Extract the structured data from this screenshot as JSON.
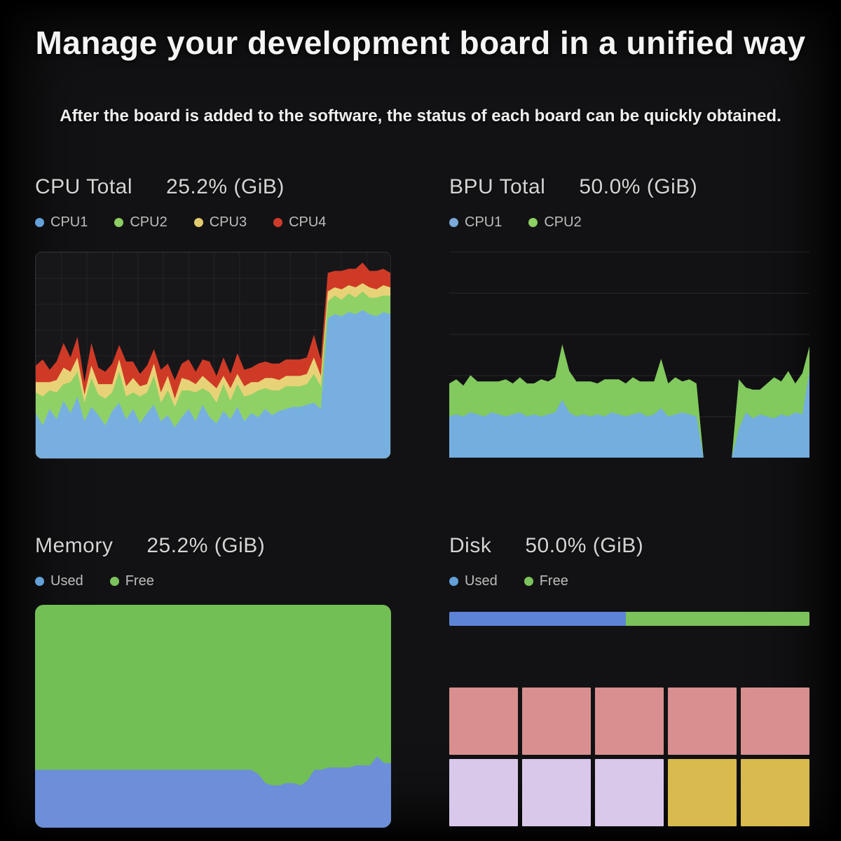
{
  "page": {
    "title": "Manage your development board in a unified way",
    "subtitle": "After the board is added to the software, the status of each board can be quickly obtained."
  },
  "panels": {
    "cpu": {
      "title": "CPU Total",
      "value": "25.2% (GiB)",
      "legend": [
        {
          "label": "CPU1",
          "color": "#63a0d8"
        },
        {
          "label": "CPU2",
          "color": "#8ccf62"
        },
        {
          "label": "CPU3",
          "color": "#e2cb6c"
        },
        {
          "label": "CPU4",
          "color": "#d03a28"
        }
      ]
    },
    "bpu": {
      "title": "BPU Total",
      "value": "50.0% (GiB)",
      "legend": [
        {
          "label": "CPU1",
          "color": "#7aa8d8"
        },
        {
          "label": "CPU2",
          "color": "#8ccf62"
        }
      ]
    },
    "memory": {
      "title": "Memory",
      "value": "25.2% (GiB)",
      "legend": [
        {
          "label": "Used",
          "color": "#63a0d8"
        },
        {
          "label": "Free",
          "color": "#7cc35c"
        }
      ]
    },
    "disk": {
      "title": "Disk",
      "value": "50.0% (GiB)",
      "legend": [
        {
          "label": "Used",
          "color": "#63a0d8"
        },
        {
          "label": "Free",
          "color": "#7cc35c"
        }
      ]
    }
  },
  "chart_data": [
    {
      "id": "cpu",
      "type": "area",
      "stacked": true,
      "title": "CPU Total 25.2% (GiB)",
      "ylim": [
        0,
        100
      ],
      "grid": true,
      "legend_position": "top",
      "series": [
        {
          "name": "CPU1",
          "color": "#77b0e0",
          "values": [
            22,
            16,
            24,
            19,
            28,
            22,
            30,
            18,
            25,
            21,
            16,
            23,
            27,
            19,
            24,
            17,
            22,
            26,
            18,
            21,
            15,
            20,
            24,
            18,
            26,
            20,
            17,
            23,
            19,
            25,
            18,
            22,
            20,
            24,
            21,
            23,
            24,
            25,
            25,
            26,
            27,
            24,
            68,
            70,
            69,
            71,
            70,
            72,
            70,
            69,
            71,
            70
          ]
        },
        {
          "name": "CPU2",
          "color": "#90d166",
          "values": [
            10,
            14,
            9,
            13,
            8,
            15,
            12,
            9,
            14,
            10,
            13,
            9,
            15,
            11,
            8,
            13,
            10,
            14,
            9,
            12,
            10,
            13,
            9,
            14,
            8,
            12,
            10,
            13,
            9,
            11,
            12,
            9,
            13,
            10,
            12,
            10,
            11,
            10,
            10,
            10,
            14,
            11,
            8,
            9,
            8,
            9,
            8,
            9,
            8,
            9,
            8,
            9
          ]
        },
        {
          "name": "CPU3",
          "color": "#e8d277",
          "values": [
            5,
            7,
            4,
            6,
            8,
            5,
            7,
            4,
            6,
            5,
            7,
            4,
            6,
            5,
            7,
            5,
            4,
            6,
            5,
            7,
            4,
            6,
            5,
            4,
            6,
            5,
            7,
            4,
            6,
            5,
            5,
            6,
            4,
            5,
            6,
            5,
            5,
            5,
            5,
            5,
            8,
            5,
            5,
            4,
            5,
            4,
            5,
            4,
            5,
            4,
            5,
            4
          ]
        },
        {
          "name": "CPU4",
          "color": "#cf3a26",
          "values": [
            8,
            11,
            6,
            9,
            12,
            7,
            10,
            6,
            11,
            8,
            6,
            10,
            7,
            12,
            8,
            6,
            9,
            7,
            11,
            6,
            9,
            7,
            10,
            6,
            8,
            10,
            6,
            9,
            7,
            10,
            8,
            7,
            9,
            8,
            7,
            8,
            8,
            8,
            8,
            8,
            11,
            8,
            9,
            8,
            9,
            8,
            9,
            10,
            8,
            9,
            8,
            7
          ]
        }
      ]
    },
    {
      "id": "bpu",
      "type": "area",
      "stacked": true,
      "title": "BPU Total 50.0% (GiB)",
      "ylim": [
        0,
        100
      ],
      "grid": true,
      "legend_position": "top",
      "series": [
        {
          "name": "CPU1",
          "color": "#74aede",
          "values": [
            20,
            21,
            20,
            22,
            21,
            20,
            22,
            21,
            20,
            21,
            22,
            20,
            21,
            20,
            21,
            22,
            28,
            22,
            20,
            21,
            20,
            21,
            20,
            22,
            21,
            20,
            21,
            22,
            20,
            21,
            24,
            20,
            21,
            22,
            21,
            20,
            0,
            0,
            0,
            0,
            0,
            14,
            22,
            19,
            21,
            20,
            19,
            21,
            20,
            22,
            21,
            42
          ]
        },
        {
          "name": "CPU2",
          "color": "#82c95e",
          "values": [
            16,
            17,
            15,
            18,
            16,
            17,
            15,
            16,
            18,
            15,
            17,
            16,
            15,
            18,
            16,
            17,
            27,
            20,
            17,
            16,
            17,
            15,
            18,
            16,
            17,
            16,
            18,
            15,
            17,
            16,
            24,
            16,
            18,
            15,
            17,
            16,
            0,
            0,
            0,
            0,
            0,
            24,
            12,
            14,
            12,
            16,
            20,
            16,
            22,
            14,
            20,
            12
          ]
        }
      ]
    },
    {
      "id": "memory",
      "type": "area",
      "stacked": true,
      "title": "Memory 25.2% (GiB)",
      "ylim": [
        0,
        100
      ],
      "grid": false,
      "legend_position": "top",
      "series": [
        {
          "name": "Used",
          "color": "#6d8ed9",
          "values": [
            26,
            26,
            26,
            26,
            26,
            26,
            26,
            26,
            26,
            26,
            26,
            26,
            26,
            26,
            26,
            26,
            26,
            26,
            26,
            26,
            26,
            26,
            26,
            26,
            26,
            26,
            26,
            26,
            26,
            26,
            26,
            26,
            24,
            20,
            19,
            19,
            20,
            20,
            19,
            21,
            26,
            26,
            27,
            27,
            27,
            27,
            28,
            28,
            28,
            32,
            29,
            29
          ]
        },
        {
          "name": "Free",
          "color": "#72bf55",
          "values": [
            74,
            74,
            74,
            74,
            74,
            74,
            74,
            74,
            74,
            74,
            74,
            74,
            74,
            74,
            74,
            74,
            74,
            74,
            74,
            74,
            74,
            74,
            74,
            74,
            74,
            74,
            74,
            74,
            74,
            74,
            74,
            74,
            76,
            80,
            81,
            81,
            80,
            80,
            81,
            79,
            74,
            74,
            73,
            73,
            73,
            73,
            72,
            72,
            72,
            68,
            71,
            71
          ]
        }
      ]
    },
    {
      "id": "disk_bar",
      "type": "bar",
      "title": "Disk 50.0% (GiB)",
      "categories": [
        "Used",
        "Free"
      ],
      "values": [
        49,
        51
      ],
      "colors": {
        "used": "#5d83d6",
        "free": "#7cc25a"
      }
    },
    {
      "id": "disk_tiles",
      "type": "heatmap",
      "rows": 2,
      "cols": 5,
      "cell_colors": [
        "#d98f8f",
        "#d98f8f",
        "#d98f8f",
        "#d98f8f",
        "#d98f8f",
        "#d9c8ea",
        "#d9c8ea",
        "#d9c8ea",
        "#d9ba4e",
        "#d9ba4e"
      ]
    }
  ]
}
